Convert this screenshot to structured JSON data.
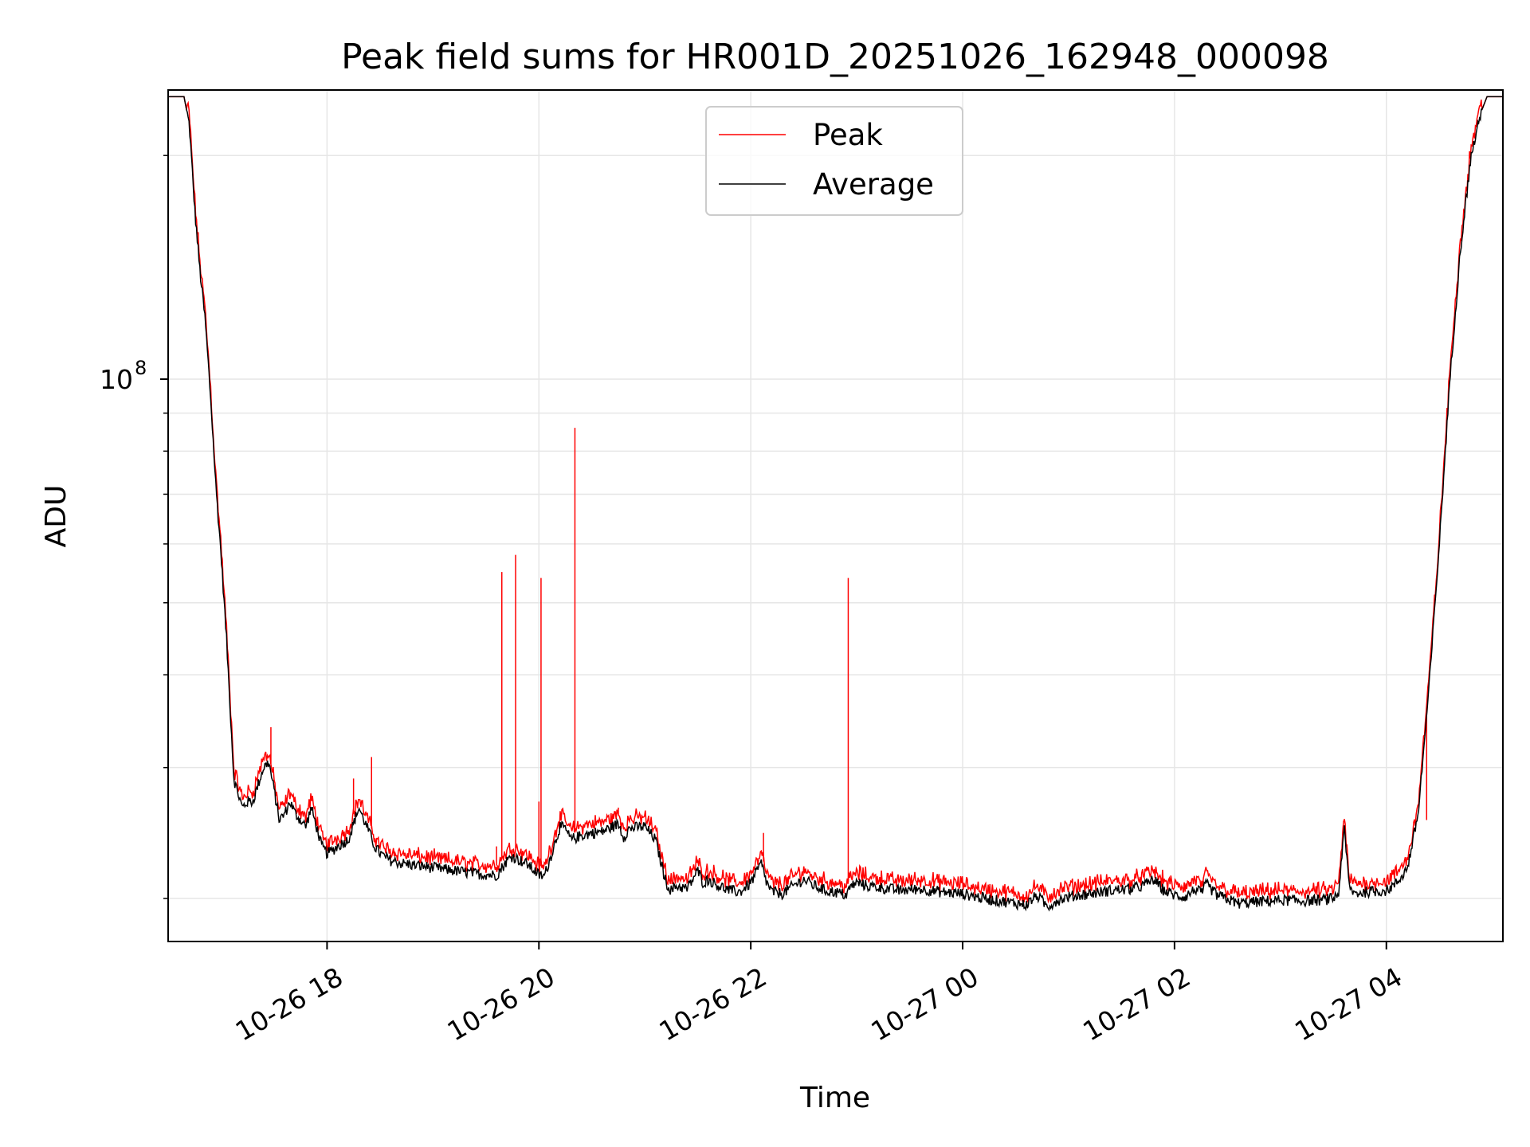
{
  "chart_data": {
    "type": "line",
    "title": "Peak field sums for HR001D_20251026_162948_000098",
    "xlabel": "Time",
    "ylabel": "ADU",
    "yscale": "log",
    "ylim": [
      17500000,
      245000000
    ],
    "xlim_hours": [
      16.5,
      29.1
    ],
    "grid": true,
    "legend": {
      "position": "upper-center"
    },
    "x_ticks": [
      {
        "hour": 18,
        "label": "10-26 18"
      },
      {
        "hour": 20,
        "label": "10-26 20"
      },
      {
        "hour": 22,
        "label": "10-26 22"
      },
      {
        "hour": 24,
        "label": "10-27 00"
      },
      {
        "hour": 26,
        "label": "10-27 02"
      },
      {
        "hour": 28,
        "label": "10-27 04"
      }
    ],
    "y_major_ticks": [
      {
        "value": 100000000,
        "base": "10",
        "exp": "8"
      }
    ],
    "y_minor_ticks": [
      20000000,
      30000000,
      40000000,
      50000000,
      60000000,
      70000000,
      80000000,
      90000000,
      200000000
    ],
    "colors": {
      "peak": "#ff0000",
      "average": "#000000",
      "grid": "#e6e6e6"
    },
    "series": [
      {
        "name": "Average",
        "x_hours": [
          16.5,
          16.65,
          16.7,
          16.75,
          16.8,
          16.85,
          16.9,
          16.95,
          17.0,
          17.05,
          17.1,
          17.12,
          17.15,
          17.2,
          17.25,
          17.3,
          17.35,
          17.4,
          17.45,
          17.5,
          17.55,
          17.6,
          17.65,
          17.7,
          17.75,
          17.8,
          17.85,
          17.9,
          17.95,
          18.0,
          18.05,
          18.1,
          18.2,
          18.3,
          18.4,
          18.45,
          18.5,
          18.55,
          18.6,
          18.7,
          18.8,
          19.0,
          19.2,
          19.4,
          19.6,
          19.7,
          19.75,
          19.8,
          19.9,
          20.0,
          20.05,
          20.1,
          20.2,
          20.25,
          20.3,
          20.4,
          20.5,
          20.6,
          20.7,
          20.75,
          20.8,
          20.85,
          20.9,
          21.0,
          21.1,
          21.2,
          21.25,
          21.3,
          21.4,
          21.5,
          21.55,
          21.6,
          21.7,
          21.8,
          21.9,
          22.0,
          22.1,
          22.15,
          22.2,
          22.3,
          22.4,
          22.5,
          22.6,
          22.7,
          22.8,
          22.9,
          22.95,
          23.0,
          23.1,
          23.2,
          23.4,
          23.6,
          23.8,
          24.0,
          24.2,
          24.4,
          24.6,
          24.7,
          24.8,
          24.85,
          24.9,
          25.0,
          25.2,
          25.4,
          25.6,
          25.7,
          25.8,
          25.9,
          26.0,
          26.1,
          26.2,
          26.25,
          26.3,
          26.4,
          26.6,
          26.8,
          27.0,
          27.2,
          27.4,
          27.5,
          27.55,
          27.6,
          27.65,
          27.7,
          27.8,
          28.0,
          28.1,
          28.2,
          28.3,
          28.4,
          28.5,
          28.6,
          28.7,
          28.8,
          28.9,
          28.95,
          29.0,
          29.1
        ],
        "values": [
          240000000,
          240000000,
          220000000,
          170000000,
          140000000,
          120000000,
          95000000,
          72000000,
          58000000,
          45000000,
          33000000,
          29000000,
          28000000,
          26500000,
          27000000,
          27000000,
          28500000,
          30000000,
          30500000,
          28000000,
          25500000,
          26000000,
          27000000,
          26000000,
          25500000,
          25000000,
          26500000,
          25000000,
          23500000,
          23000000,
          23200000,
          23500000,
          24000000,
          26500000,
          24500000,
          23500000,
          23000000,
          22700000,
          22500000,
          22300000,
          22200000,
          22000000,
          21800000,
          21600000,
          21500000,
          22500000,
          22800000,
          22600000,
          22200000,
          21500000,
          21400000,
          22500000,
          25000000,
          24800000,
          24000000,
          24300000,
          24500000,
          24600000,
          25000000,
          25200000,
          24200000,
          24800000,
          24900000,
          25000000,
          24000000,
          21000000,
          20500000,
          20800000,
          20600000,
          21800000,
          21000000,
          21200000,
          20800000,
          20500000,
          20400000,
          21000000,
          22300000,
          21000000,
          20400000,
          20300000,
          20800000,
          21200000,
          20800000,
          20500000,
          20400000,
          20200000,
          20800000,
          21000000,
          20800000,
          20700000,
          20500000,
          20600000,
          20400000,
          20300000,
          20000000,
          19800000,
          19600000,
          20200000,
          19500000,
          19700000,
          19900000,
          20100000,
          20300000,
          20500000,
          20600000,
          20800000,
          21200000,
          20500000,
          20200000,
          20100000,
          20600000,
          20300000,
          20900000,
          20200000,
          19700000,
          19800000,
          19900000,
          19850000,
          19900000,
          20000000,
          20300000,
          25000000,
          20700000,
          20300000,
          20400000,
          20500000,
          21000000,
          22000000,
          26000000,
          38000000,
          60000000,
          100000000,
          150000000,
          200000000,
          230000000,
          240000000,
          240000000,
          240000000
        ]
      },
      {
        "name": "Peak",
        "spikes": [
          {
            "hour": 17.47,
            "value": 34000000
          },
          {
            "hour": 18.25,
            "value": 29000000
          },
          {
            "hour": 18.42,
            "value": 31000000
          },
          {
            "hour": 19.6,
            "value": 23500000
          },
          {
            "hour": 19.65,
            "value": 55000000
          },
          {
            "hour": 19.78,
            "value": 58000000
          },
          {
            "hour": 20.0,
            "value": 27000000
          },
          {
            "hour": 20.02,
            "value": 54000000
          },
          {
            "hour": 20.34,
            "value": 86000000
          },
          {
            "hour": 20.75,
            "value": 26500000
          },
          {
            "hour": 22.12,
            "value": 24500000
          },
          {
            "hour": 22.92,
            "value": 54000000
          },
          {
            "hour": 28.38,
            "value": 25500000
          }
        ]
      }
    ]
  },
  "legend": {
    "items": [
      {
        "label": "Peak",
        "color": "#ff0000"
      },
      {
        "label": "Average",
        "color": "#000000"
      }
    ]
  }
}
